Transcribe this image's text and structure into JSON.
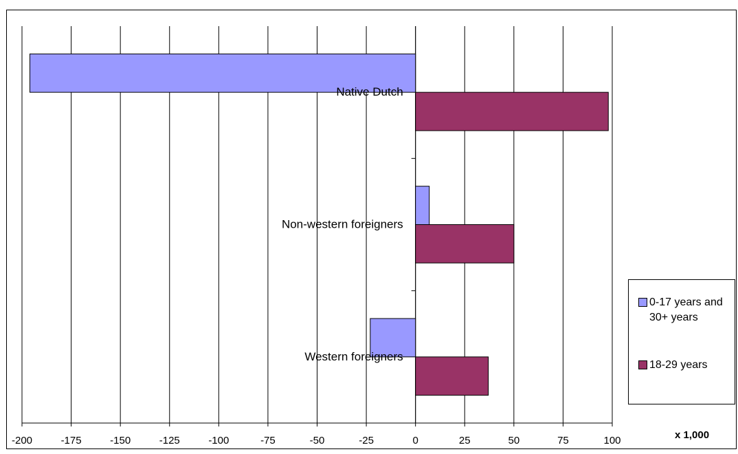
{
  "chart_data": {
    "type": "bar",
    "orientation": "horizontal",
    "categories": [
      "Native Dutch",
      "Non-western foreigners",
      "Western foreigners"
    ],
    "series": [
      {
        "name": "0-17 years and 30+ years",
        "color": "#9999ff",
        "values": [
          -196,
          7,
          -23
        ]
      },
      {
        "name": "18-29 years",
        "color": "#993366",
        "values": [
          98,
          50,
          37
        ]
      }
    ],
    "x_ticks": [
      "-200",
      "-175",
      "-150",
      "-125",
      "-100",
      "-75",
      "-50",
      "-25",
      "0",
      "25",
      "50",
      "75",
      "100"
    ],
    "xlim": [
      -200,
      100
    ],
    "unit_label": "x 1,000",
    "grid": "vertical",
    "legend_position": "right"
  }
}
